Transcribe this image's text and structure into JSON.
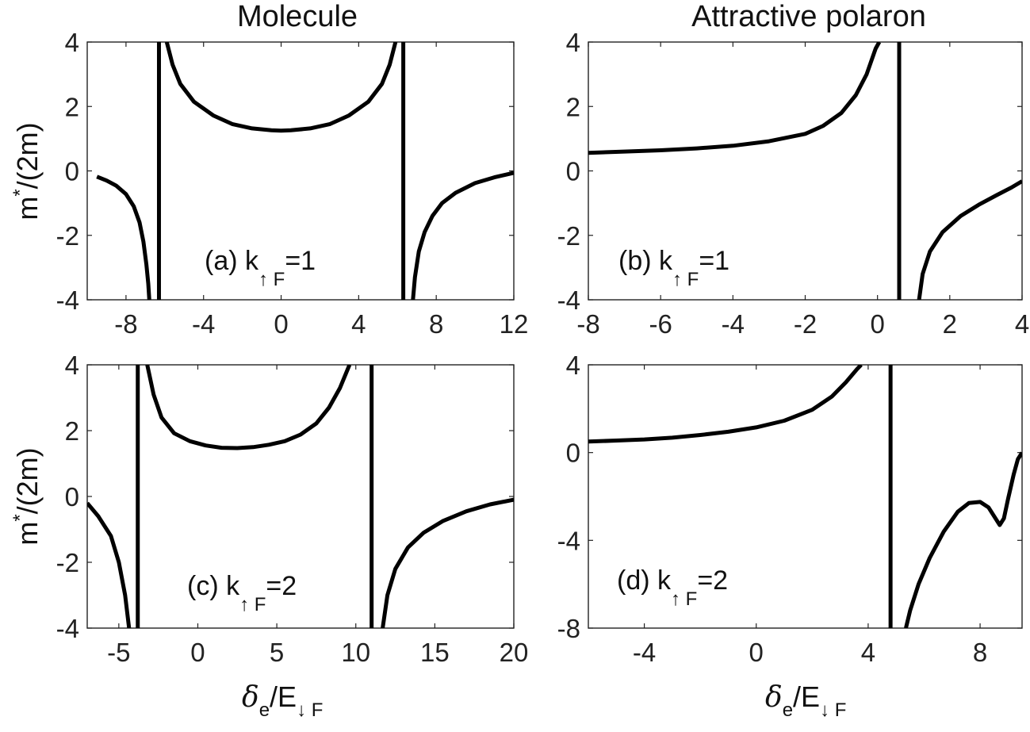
{
  "figure": {
    "col_titles": [
      "Molecule",
      "Attractive polaron"
    ],
    "ylabel": {
      "base": "m",
      "sup": "*",
      "rest": "/(2m)"
    },
    "xlabel": {
      "delta": "δ",
      "delta_sub": "e",
      "mid": "/E",
      "sub": "↓ F"
    }
  },
  "chart_data": [
    {
      "type": "line",
      "panel": "a",
      "annotation": {
        "text": "(a) k",
        "sub": "↑ F",
        "tail": "=1"
      },
      "xlim": [
        -10,
        12
      ],
      "ylim": [
        -4,
        4
      ],
      "xticks": [
        -8,
        -4,
        0,
        4,
        8,
        12
      ],
      "yticks": [
        -4,
        -2,
        0,
        2,
        4
      ],
      "vlines": [
        -6.3,
        6.3
      ],
      "series": [
        {
          "points": [
            [
              -9.5,
              -0.18
            ],
            [
              -9,
              -0.3
            ],
            [
              -8.5,
              -0.46
            ],
            [
              -8,
              -0.72
            ],
            [
              -7.6,
              -1.1
            ],
            [
              -7.3,
              -1.6
            ],
            [
              -7.1,
              -2.2
            ],
            [
              -6.95,
              -2.9
            ],
            [
              -6.85,
              -3.5
            ],
            [
              -6.8,
              -4
            ]
          ]
        },
        {
          "points": [
            [
              -5.9,
              4
            ],
            [
              -5.6,
              3.3
            ],
            [
              -5.2,
              2.7
            ],
            [
              -4.5,
              2.15
            ],
            [
              -3.5,
              1.72
            ],
            [
              -2.5,
              1.45
            ],
            [
              -1.5,
              1.32
            ],
            [
              -0.5,
              1.26
            ],
            [
              0,
              1.25
            ],
            [
              0.5,
              1.26
            ],
            [
              1.5,
              1.32
            ],
            [
              2.5,
              1.45
            ],
            [
              3.5,
              1.72
            ],
            [
              4.5,
              2.15
            ],
            [
              5.2,
              2.7
            ],
            [
              5.6,
              3.3
            ],
            [
              5.9,
              4
            ]
          ]
        },
        {
          "points": [
            [
              6.8,
              -4
            ],
            [
              6.9,
              -3.3
            ],
            [
              7.1,
              -2.5
            ],
            [
              7.4,
              -1.9
            ],
            [
              7.8,
              -1.4
            ],
            [
              8.3,
              -1.0
            ],
            [
              9,
              -0.68
            ],
            [
              10,
              -0.38
            ],
            [
              11,
              -0.2
            ],
            [
              12,
              -0.06
            ]
          ]
        }
      ]
    },
    {
      "type": "line",
      "panel": "b",
      "annotation": {
        "text": "(b) k",
        "sub": "↑ F",
        "tail": "=1"
      },
      "xlim": [
        -8,
        4
      ],
      "ylim": [
        -4,
        4
      ],
      "xticks": [
        -8,
        -6,
        -4,
        -2,
        0,
        2,
        4
      ],
      "yticks": [
        -4,
        -2,
        0,
        2,
        4
      ],
      "vlines": [
        0.6
      ],
      "series": [
        {
          "points": [
            [
              -8,
              0.56
            ],
            [
              -7,
              0.6
            ],
            [
              -6,
              0.64
            ],
            [
              -5,
              0.7
            ],
            [
              -4,
              0.78
            ],
            [
              -3,
              0.92
            ],
            [
              -2,
              1.15
            ],
            [
              -1.5,
              1.4
            ],
            [
              -1,
              1.8
            ],
            [
              -0.6,
              2.35
            ],
            [
              -0.3,
              3.0
            ],
            [
              -0.05,
              3.8
            ],
            [
              0.05,
              4
            ]
          ]
        },
        {
          "points": [
            [
              1.15,
              -4
            ],
            [
              1.25,
              -3.2
            ],
            [
              1.45,
              -2.5
            ],
            [
              1.8,
              -1.9
            ],
            [
              2.3,
              -1.4
            ],
            [
              2.8,
              -1.05
            ],
            [
              3.3,
              -0.75
            ],
            [
              3.7,
              -0.52
            ],
            [
              4,
              -0.32
            ]
          ]
        }
      ]
    },
    {
      "type": "line",
      "panel": "c",
      "annotation": {
        "text": "(c) k",
        "sub": "↑ F",
        "tail": "=2"
      },
      "xlim": [
        -7,
        20
      ],
      "ylim": [
        -4,
        4
      ],
      "xticks": [
        -5,
        0,
        5,
        10,
        15,
        20
      ],
      "yticks": [
        -4,
        -2,
        0,
        2,
        4
      ],
      "vlines": [
        -3.8,
        11.0
      ],
      "series": [
        {
          "points": [
            [
              -7,
              -0.2
            ],
            [
              -6.3,
              -0.6
            ],
            [
              -5.5,
              -1.2
            ],
            [
              -5,
              -2.0
            ],
            [
              -4.6,
              -3.0
            ],
            [
              -4.35,
              -4
            ]
          ]
        },
        {
          "points": [
            [
              -3.2,
              4
            ],
            [
              -2.8,
              3.1
            ],
            [
              -2.3,
              2.4
            ],
            [
              -1.5,
              1.92
            ],
            [
              -0.5,
              1.68
            ],
            [
              0.5,
              1.55
            ],
            [
              1.5,
              1.48
            ],
            [
              2.5,
              1.47
            ],
            [
              3.5,
              1.5
            ],
            [
              4.5,
              1.57
            ],
            [
              5.5,
              1.68
            ],
            [
              6.5,
              1.88
            ],
            [
              7.5,
              2.22
            ],
            [
              8.3,
              2.7
            ],
            [
              9,
              3.3
            ],
            [
              9.6,
              4
            ]
          ]
        },
        {
          "points": [
            [
              11.7,
              -4
            ],
            [
              12,
              -3.0
            ],
            [
              12.5,
              -2.2
            ],
            [
              13.3,
              -1.55
            ],
            [
              14.3,
              -1.1
            ],
            [
              15.5,
              -0.75
            ],
            [
              17,
              -0.45
            ],
            [
              18.5,
              -0.24
            ],
            [
              20,
              -0.1
            ]
          ]
        }
      ]
    },
    {
      "type": "line",
      "panel": "d",
      "annotation": {
        "text": "(d) k",
        "sub": "↑ F",
        "tail": "=2"
      },
      "xlim": [
        -6,
        9.5
      ],
      "ylim": [
        -8,
        4
      ],
      "xticks": [
        -4,
        0,
        4,
        8
      ],
      "yticks": [
        -8,
        -4,
        0,
        4
      ],
      "vlines": [
        4.8
      ],
      "series": [
        {
          "points": [
            [
              -6,
              0.5
            ],
            [
              -5,
              0.55
            ],
            [
              -4,
              0.6
            ],
            [
              -3,
              0.68
            ],
            [
              -2,
              0.8
            ],
            [
              -1,
              0.95
            ],
            [
              0,
              1.15
            ],
            [
              1,
              1.45
            ],
            [
              2,
              1.95
            ],
            [
              2.7,
              2.55
            ],
            [
              3.2,
              3.2
            ],
            [
              3.6,
              3.8
            ],
            [
              3.75,
              4
            ]
          ]
        },
        {
          "points": [
            [
              5.35,
              -8
            ],
            [
              5.5,
              -7.2
            ],
            [
              5.8,
              -6.0
            ],
            [
              6.2,
              -4.8
            ],
            [
              6.7,
              -3.6
            ],
            [
              7.2,
              -2.7
            ],
            [
              7.6,
              -2.3
            ],
            [
              8.0,
              -2.25
            ],
            [
              8.3,
              -2.5
            ],
            [
              8.55,
              -3.0
            ],
            [
              8.7,
              -3.3
            ],
            [
              8.85,
              -3.0
            ],
            [
              9.0,
              -2.1
            ],
            [
              9.2,
              -1.0
            ],
            [
              9.35,
              -0.3
            ],
            [
              9.5,
              0
            ]
          ]
        }
      ]
    }
  ]
}
